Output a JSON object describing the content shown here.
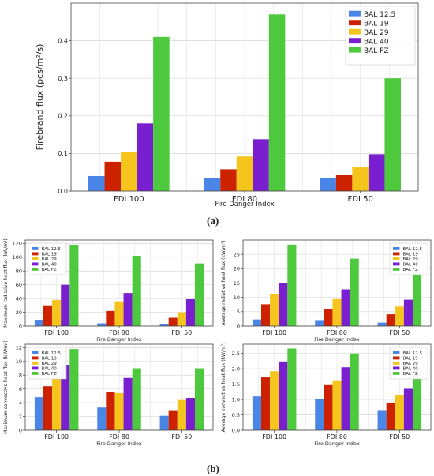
{
  "colors": {
    "BAL 12.5": "#4a86e8",
    "BAL 19": "#cc2200",
    "BAL 29": "#f6c51d",
    "BAL 40": "#7a1fcf",
    "BAL FZ": "#4ec93d"
  },
  "labels": {
    "a": "(a)",
    "b": "(b)"
  },
  "chart_data": [
    {
      "id": "firebrand",
      "type": "bar",
      "xlabel": "Fire Danger Index",
      "ylabel": "Firebrand flux (pcs/m²/s)",
      "categories": [
        "FDI 100",
        "FDI 80",
        "FDI 50"
      ],
      "ylim": [
        0,
        0.5
      ],
      "yticks": [
        "0.0",
        "0.1",
        "0.2",
        "0.3",
        "0.4"
      ],
      "legend_position": "top-right",
      "grid": true,
      "series": [
        {
          "name": "BAL 12.5",
          "values": [
            0.04,
            0.034,
            0.034
          ]
        },
        {
          "name": "BAL 19",
          "values": [
            0.078,
            0.058,
            0.042
          ]
        },
        {
          "name": "BAL 29",
          "values": [
            0.105,
            0.092,
            0.063
          ]
        },
        {
          "name": "BAL 40",
          "values": [
            0.18,
            0.138,
            0.098
          ]
        },
        {
          "name": "BAL FZ",
          "values": [
            0.41,
            0.47,
            0.3
          ]
        }
      ]
    },
    {
      "id": "max-radiative",
      "type": "bar",
      "xlabel": "Fire Danger Index",
      "ylabel": "Maximum radiative heat flux (kW/m²)",
      "categories": [
        "FDI 100",
        "FDI 80",
        "FDI 50"
      ],
      "ylim": [
        0,
        125
      ],
      "yticks": [
        "0",
        "20",
        "40",
        "60",
        "80",
        "100",
        "120"
      ],
      "legend_position": "top-left",
      "grid": true,
      "series": [
        {
          "name": "BAL 12.5",
          "values": [
            8,
            4,
            3
          ]
        },
        {
          "name": "BAL 19",
          "values": [
            29,
            22,
            12
          ]
        },
        {
          "name": "BAL 29",
          "values": [
            38,
            36,
            20
          ]
        },
        {
          "name": "BAL 40",
          "values": [
            60,
            48,
            39
          ]
        },
        {
          "name": "BAL FZ",
          "values": [
            118,
            102,
            91
          ]
        }
      ]
    },
    {
      "id": "avg-radiative",
      "type": "bar",
      "xlabel": "Fire Danger Index",
      "ylabel": "Average radiative heat flux (kW/m²)",
      "categories": [
        "FDI 100",
        "FDI 80",
        "FDI 50"
      ],
      "ylim": [
        0,
        30
      ],
      "yticks": [
        "0",
        "5",
        "10",
        "15",
        "20",
        "25"
      ],
      "legend_position": "top-right",
      "grid": true,
      "series": [
        {
          "name": "BAL 12.5",
          "values": [
            2.3,
            1.8,
            1.2
          ]
        },
        {
          "name": "BAL 19",
          "values": [
            7.6,
            5.9,
            4.1
          ]
        },
        {
          "name": "BAL 29",
          "values": [
            11.2,
            9.4,
            6.8
          ]
        },
        {
          "name": "BAL 40",
          "values": [
            15,
            12.8,
            9.2
          ]
        },
        {
          "name": "BAL FZ",
          "values": [
            28.4,
            23.5,
            19.4
          ]
        }
      ]
    },
    {
      "id": "max-convective",
      "type": "bar",
      "xlabel": "Fire Danger Index",
      "ylabel": "Maximum convective heat flux (kW/m²)",
      "categories": [
        "FDI 100",
        "FDI 80",
        "FDI 50"
      ],
      "ylim": [
        0,
        12.5
      ],
      "yticks": [
        "0",
        "2",
        "4",
        "6",
        "8",
        "10",
        "12"
      ],
      "legend_position": "top-left",
      "grid": true,
      "series": [
        {
          "name": "BAL 12.5",
          "values": [
            4.8,
            3.3,
            2.1
          ]
        },
        {
          "name": "BAL 19",
          "values": [
            6.4,
            5.6,
            2.8
          ]
        },
        {
          "name": "BAL 29",
          "values": [
            7.5,
            5.4,
            4.4
          ]
        },
        {
          "name": "BAL 40",
          "values": [
            9.5,
            7.6,
            4.7
          ]
        },
        {
          "name": "BAL FZ",
          "values": [
            11.8,
            9.0,
            9.0
          ]
        }
      ]
    },
    {
      "id": "avg-convective",
      "type": "bar",
      "xlabel": "Fire Danger Index",
      "ylabel": "Average convective heat flux (kW/m²)",
      "categories": [
        "FDI 100",
        "FDI 80",
        "FDI 50"
      ],
      "ylim": [
        0,
        2.8
      ],
      "yticks": [
        "0.0",
        "0.5",
        "1.0",
        "1.5",
        "2.0",
        "2.5"
      ],
      "legend_position": "top-right",
      "grid": true,
      "series": [
        {
          "name": "BAL 12.5",
          "values": [
            1.1,
            1.02,
            0.63
          ]
        },
        {
          "name": "BAL 19",
          "values": [
            1.72,
            1.47,
            0.9
          ]
        },
        {
          "name": "BAL 29",
          "values": [
            1.92,
            1.6,
            1.14
          ]
        },
        {
          "name": "BAL 40",
          "values": [
            2.24,
            2.05,
            1.35
          ]
        },
        {
          "name": "BAL FZ",
          "values": [
            2.66,
            2.5,
            1.85
          ]
        }
      ]
    }
  ]
}
